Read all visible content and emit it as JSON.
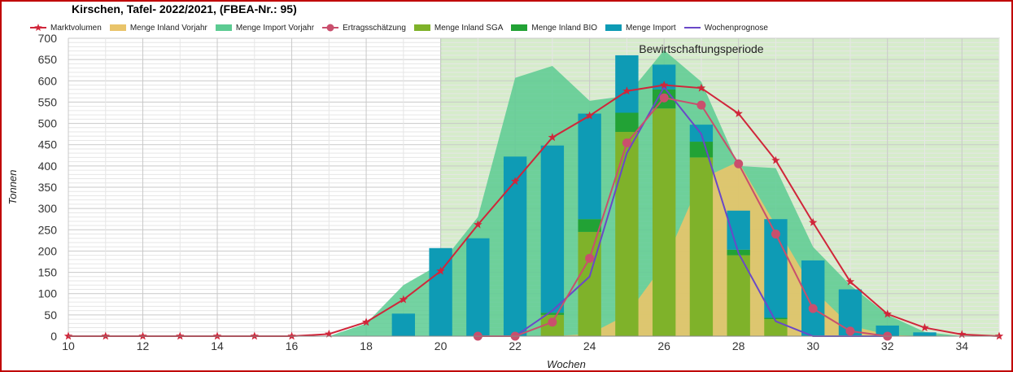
{
  "chart_data": {
    "type": "bar",
    "title": "Kirschen, Tafel- 2022/2021, (FBEA-Nr.: 95)",
    "xlabel": "Wochen",
    "ylabel": "Tonnen",
    "xlim": [
      10,
      35
    ],
    "ylim": [
      0,
      700
    ],
    "x_ticks": [
      10,
      12,
      14,
      16,
      18,
      20,
      22,
      24,
      26,
      28,
      30,
      32,
      34
    ],
    "y_ticks": [
      0,
      50,
      100,
      150,
      200,
      250,
      300,
      350,
      400,
      450,
      500,
      550,
      600,
      650,
      700
    ],
    "grid": true,
    "legend_position": "top",
    "annotations": [
      {
        "text": "Bewirtschaftungsperiode",
        "x": 27,
        "y": 675
      }
    ],
    "period": {
      "label": "Bewirtschaftungsperiode",
      "x_start": 20,
      "x_end": 35,
      "color": "#d6eccb"
    },
    "series": [
      {
        "name": "Marktvolumen",
        "kind": "line",
        "marker": "star",
        "color": "#d0263a",
        "x": [
          10,
          11,
          12,
          13,
          14,
          15,
          16,
          17,
          18,
          19,
          20,
          21,
          22,
          23,
          24,
          25,
          26,
          27,
          28,
          29,
          30,
          31,
          32,
          33,
          34,
          35
        ],
        "values": [
          0,
          0,
          0,
          0,
          0,
          0,
          0,
          5,
          33,
          86,
          153,
          262,
          364,
          467,
          518,
          576,
          590,
          583,
          523,
          413,
          267,
          128,
          52,
          20,
          4,
          0
        ]
      },
      {
        "name": "Menge Inland Vorjahr",
        "kind": "area",
        "color": "#e9c46a",
        "x": [
          20,
          22,
          23,
          24,
          25,
          26,
          27,
          28,
          29,
          30,
          31,
          32,
          33,
          34
        ],
        "values": [
          0,
          0,
          0,
          5,
          50,
          170,
          370,
          410,
          260,
          110,
          25,
          3,
          0,
          0
        ]
      },
      {
        "name": "Menge Import Vorjahr",
        "kind": "area",
        "color": "#5ccb92",
        "x": [
          17,
          18,
          19,
          20,
          21,
          22,
          23,
          24,
          25,
          26,
          27,
          28,
          29,
          30,
          31,
          32,
          33,
          34
        ],
        "values": [
          0,
          30,
          120,
          170,
          280,
          607,
          635,
          553,
          565,
          672,
          598,
          400,
          395,
          210,
          120,
          50,
          10,
          0
        ]
      },
      {
        "name": "Ertragsschätzung",
        "kind": "line",
        "marker": "circle",
        "color": "#c94f6d",
        "x": [
          21,
          22,
          23,
          24,
          25,
          26,
          27,
          28,
          29,
          30,
          31,
          32
        ],
        "values": [
          0,
          0,
          33,
          183,
          454,
          560,
          543,
          405,
          240,
          65,
          12,
          0
        ]
      },
      {
        "name": "Menge Inland SGA",
        "kind": "bar",
        "color": "#7fb22a",
        "x": [
          23,
          24,
          25,
          26,
          27,
          28,
          29
        ],
        "values": [
          50,
          245,
          480,
          535,
          420,
          190,
          40
        ]
      },
      {
        "name": "Menge Inland BIO",
        "kind": "bar",
        "color": "#22a235",
        "x": [
          23,
          24,
          25,
          26,
          27,
          28,
          29
        ],
        "values": [
          5,
          30,
          45,
          45,
          37,
          13,
          3
        ]
      },
      {
        "name": "Menge Import",
        "kind": "bar",
        "color": "#0e9bb5",
        "x": [
          19,
          20,
          21,
          22,
          23,
          24,
          25,
          26,
          27,
          28,
          29,
          30,
          31,
          32,
          33
        ],
        "values": [
          53,
          207,
          230,
          422,
          393,
          248,
          135,
          58,
          40,
          92,
          232,
          178,
          110,
          25,
          9
        ]
      },
      {
        "name": "Wochenprognose",
        "kind": "line",
        "marker": "none",
        "color": "#6a48c8",
        "x": [
          22,
          23,
          24,
          25,
          26,
          27,
          28,
          29,
          30,
          31,
          32
        ],
        "values": [
          0,
          60,
          140,
          430,
          585,
          475,
          195,
          35,
          0,
          0,
          0
        ]
      }
    ]
  }
}
